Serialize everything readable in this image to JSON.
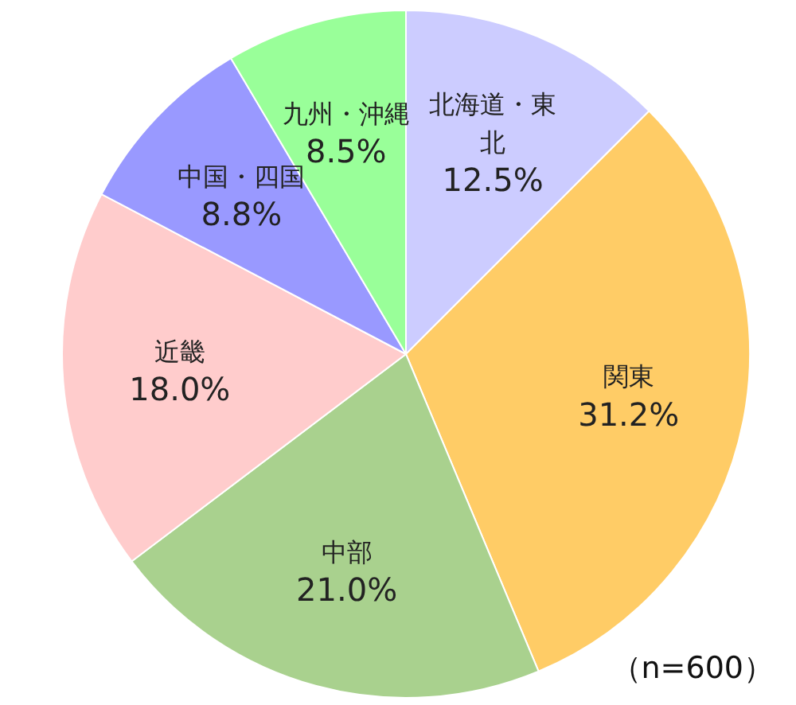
{
  "chart_data": {
    "type": "pie",
    "categories": [
      "北海道・東北",
      "関東",
      "中部",
      "近畿",
      "中国・四国",
      "九州・沖縄"
    ],
    "values": [
      12.5,
      31.2,
      21.0,
      18.0,
      8.8,
      8.5
    ],
    "colors": [
      "#ccccff",
      "#ffcc66",
      "#a9d18e",
      "#ffcccc",
      "#9999ff",
      "#99ff99"
    ],
    "value_labels": [
      "12.5%",
      "31.2%",
      "21.0%",
      "18.0%",
      "8.8%",
      "8.5%"
    ],
    "legend": false,
    "annotations": [
      "（n=600）"
    ]
  }
}
